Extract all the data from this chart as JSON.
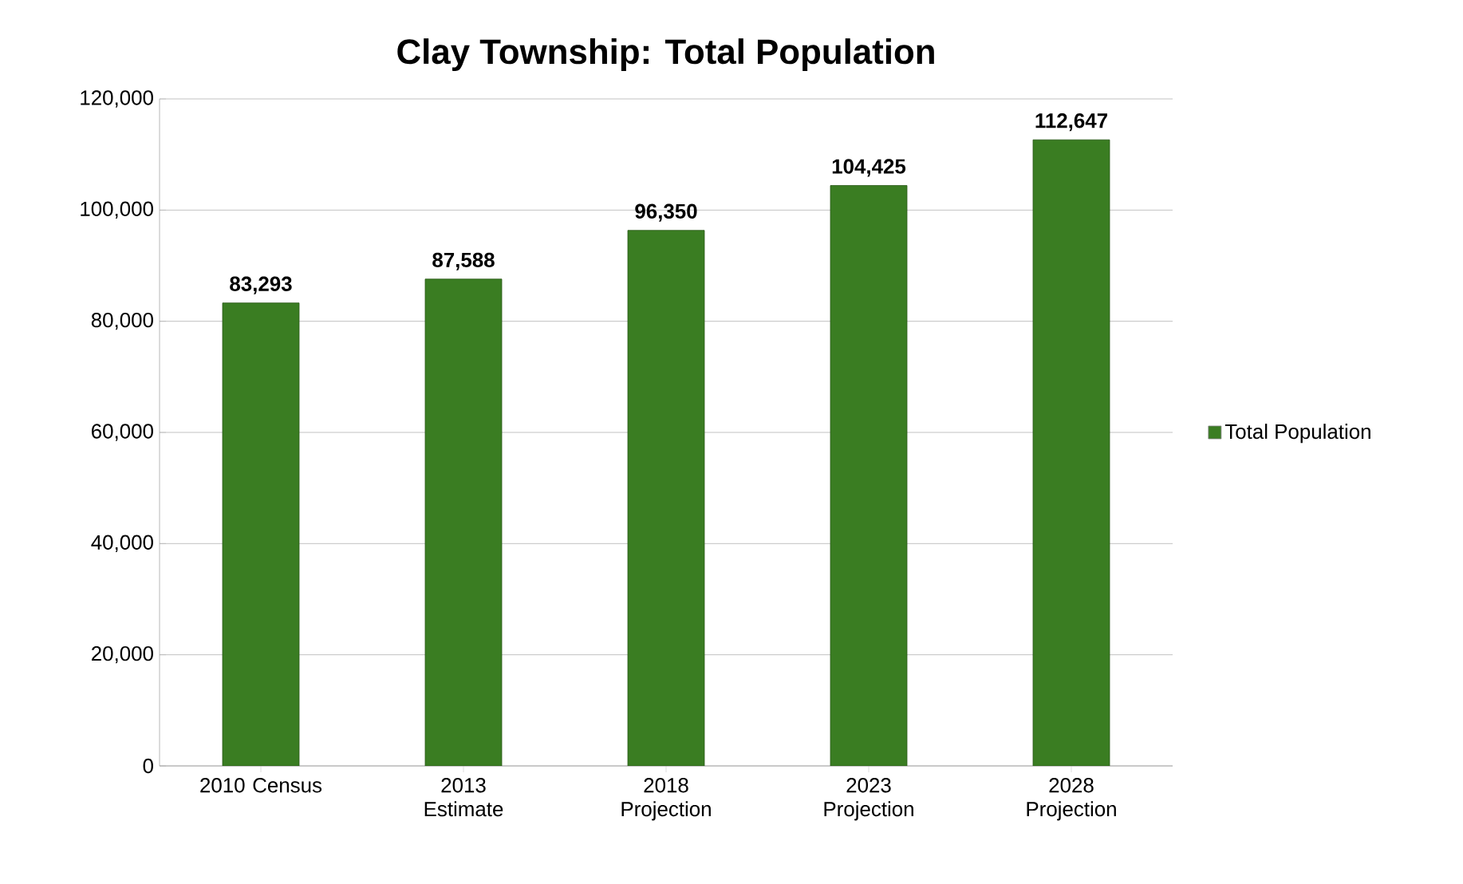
{
  "chart_data": {
    "type": "bar",
    "title": "Clay Township: Total Population",
    "categories": [
      "2010 Census",
      "2013 Estimate",
      "2018 Projection",
      "2023 Projection",
      "2028 Projection"
    ],
    "series": [
      {
        "name": "Total Population",
        "color": "#3a7d22",
        "values": [
          83293,
          87588,
          96350,
          104425,
          112647
        ],
        "value_labels": [
          "83,293",
          "87,588",
          "96,350",
          "104,425",
          "112,647"
        ]
      }
    ],
    "ylim": [
      0,
      120000
    ],
    "yticks": [
      {
        "value": 0,
        "label": "0"
      },
      {
        "value": 20000,
        "label": "20,000"
      },
      {
        "value": 40000,
        "label": "40,000"
      },
      {
        "value": 60000,
        "label": "60,000"
      },
      {
        "value": 80000,
        "label": "80,000"
      },
      {
        "value": 100000,
        "label": "100,000"
      },
      {
        "value": 120000,
        "label": "120,000"
      }
    ],
    "grid": "y",
    "legend": "right"
  }
}
